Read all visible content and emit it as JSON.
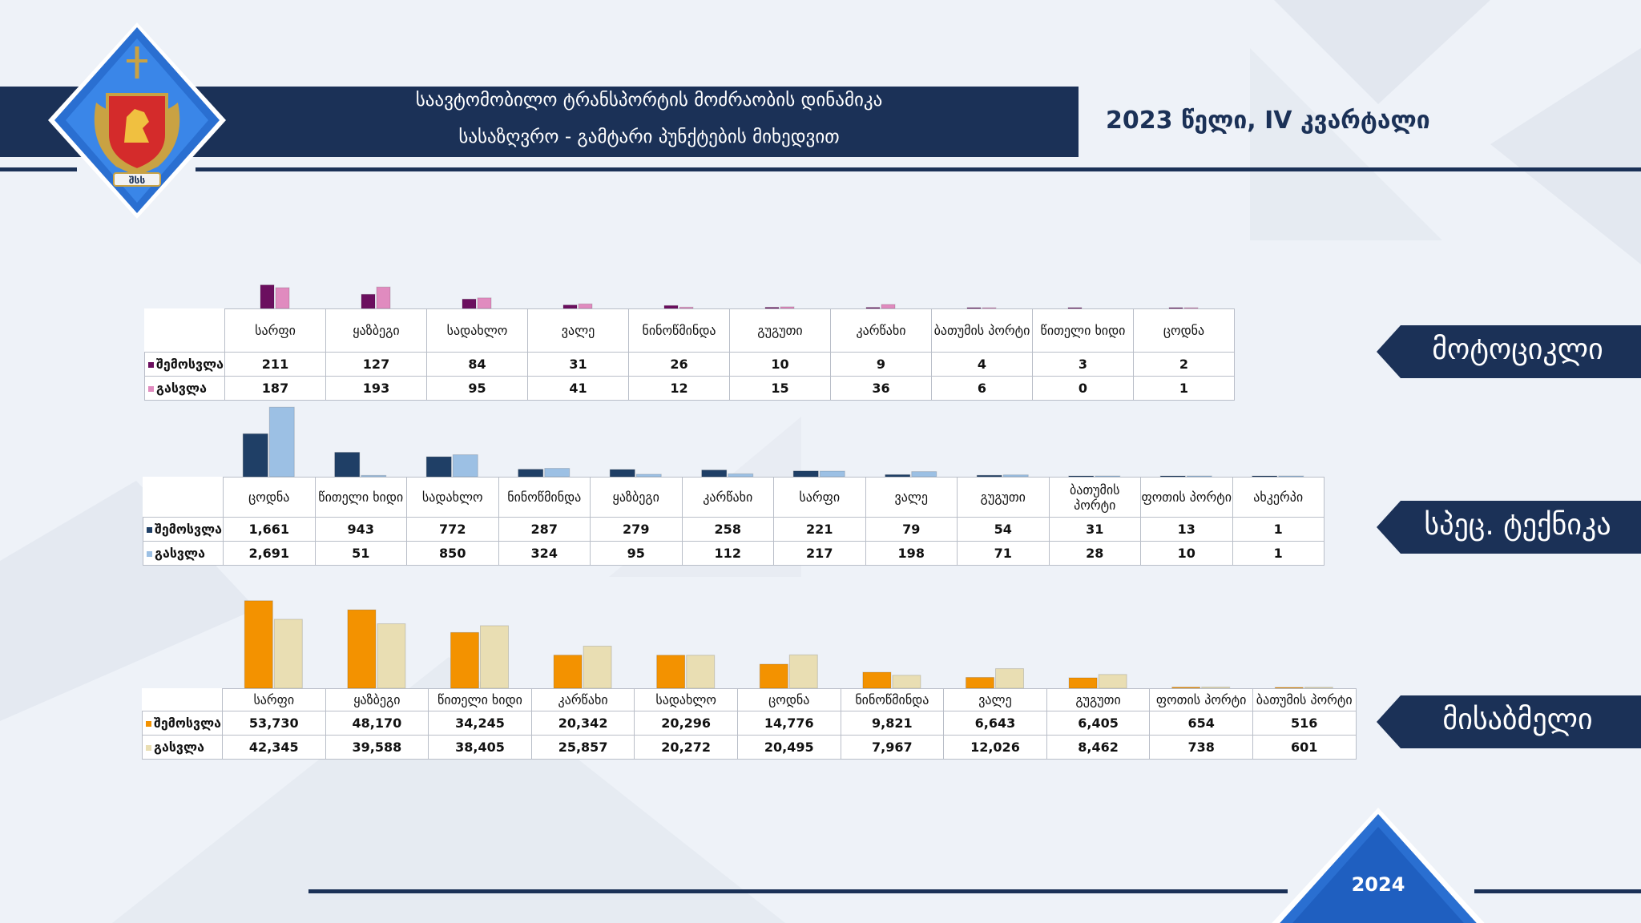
{
  "header": {
    "title_line1": "საავტომობილო ტრანსპორტის მოძრაობის დინამიკა",
    "title_line2": "სასაზღვრო - გამტარი პუნქტების მიხედვით",
    "period": "2023 წელი, IV კვარტალი"
  },
  "logo": {
    "emblem_text": "შსს"
  },
  "footer": {
    "year": "2024"
  },
  "colors": {
    "navy": "#1b3157",
    "moto_in": "#6b0f5f",
    "moto_out": "#e08bbf",
    "spec_in": "#1f3f66",
    "spec_out": "#9cc0e4",
    "car_in": "#f39200",
    "car_out": "#e9deb3"
  },
  "chart_data": [
    {
      "type": "bar",
      "category_tag": "მოტოციკლი",
      "categories": [
        "სარფი",
        "ყაზბეგი",
        "სადახლო",
        "ვალე",
        "ნინოწმინდა",
        "გუგუთი",
        "კარწახი",
        "ბათუმის პორტი",
        "წითელი ხიდი",
        "ცოდნა"
      ],
      "series": [
        {
          "name": "შემოსვლა",
          "values": [
            211,
            127,
            84,
            31,
            26,
            10,
            9,
            4,
            3,
            2
          ]
        },
        {
          "name": "გასვლა",
          "values": [
            187,
            193,
            95,
            41,
            12,
            15,
            36,
            6,
            0,
            1
          ]
        }
      ]
    },
    {
      "type": "bar",
      "category_tag": "სპეც. ტექნიკა",
      "categories": [
        "ცოდნა",
        "წითელი ხიდი",
        "სადახლო",
        "ნინოწმინდა",
        "ყაზბეგი",
        "კარწახი",
        "სარფი",
        "ვალე",
        "გუგუთი",
        "ბათუმის პორტი",
        "ფოთის პორტი",
        "ახკერპი"
      ],
      "series": [
        {
          "name": "შემოსვლა",
          "values": [
            1661,
            943,
            772,
            287,
            279,
            258,
            221,
            79,
            54,
            31,
            13,
            1
          ]
        },
        {
          "name": "გასვლა",
          "values": [
            2691,
            51,
            850,
            324,
            95,
            112,
            217,
            198,
            71,
            28,
            10,
            1
          ]
        }
      ]
    },
    {
      "type": "bar",
      "category_tag": "მისაბმელი",
      "categories": [
        "სარფი",
        "ყაზბეგი",
        "წითელი ხიდი",
        "კარწახი",
        "სადახლო",
        "ცოდნა",
        "ნინოწმინდა",
        "ვალე",
        "გუგუთი",
        "ფოთის პორტი",
        "ბათუმის პორტი"
      ],
      "series": [
        {
          "name": "შემოსვლა",
          "values": [
            53730,
            48170,
            34245,
            20342,
            20296,
            14776,
            9821,
            6643,
            6405,
            654,
            516
          ]
        },
        {
          "name": "გასვლა",
          "values": [
            42345,
            39588,
            38405,
            25857,
            20272,
            20495,
            7967,
            12026,
            8462,
            738,
            601
          ]
        }
      ]
    }
  ]
}
